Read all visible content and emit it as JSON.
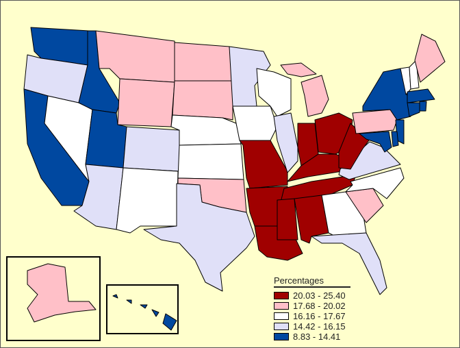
{
  "legend": {
    "title": "Percentages",
    "classes": [
      {
        "label": "20.03 - 25.40",
        "color": "#A00000"
      },
      {
        "label": "17.68 - 20.02",
        "color": "#FFC0C8"
      },
      {
        "label": "16.16 - 17.67",
        "color": "#FFFFFF"
      },
      {
        "label": "14.42 - 16.15",
        "color": "#E0E0F8"
      },
      {
        "label": "8.83 - 14.41",
        "color": "#0048A0"
      }
    ]
  },
  "background_color": "#FFFFCC",
  "state_class": {
    "MO": 0,
    "AR": 0,
    "LA": 0,
    "MS": 0,
    "AL": 0,
    "TN": 0,
    "KY": 0,
    "IN": 0,
    "OH": 0,
    "WV": 0,
    "MT": 1,
    "ND": 1,
    "SD": 1,
    "WY": 1,
    "MI": 1,
    "PA": 1,
    "SC": 1,
    "OK": 1,
    "ME": 1,
    "AK": 1,
    "NV": 2,
    "NE": 2,
    "KS": 2,
    "IA": 2,
    "WI": 2,
    "NM": 2,
    "NC": 2,
    "GA": 2,
    "VT": 2,
    "NH": 2,
    "OR": 3,
    "MN": 3,
    "CO": 3,
    "AZ": 3,
    "TX": 3,
    "IL": 3,
    "FL": 3,
    "VA": 3,
    "WA": 4,
    "ID": 4,
    "CA": 4,
    "UT": 4,
    "NY": 4,
    "NJ": 4,
    "MD": 4,
    "DE": 4,
    "MA": 4,
    "CT": 4,
    "RI": 4,
    "HI": 4
  }
}
